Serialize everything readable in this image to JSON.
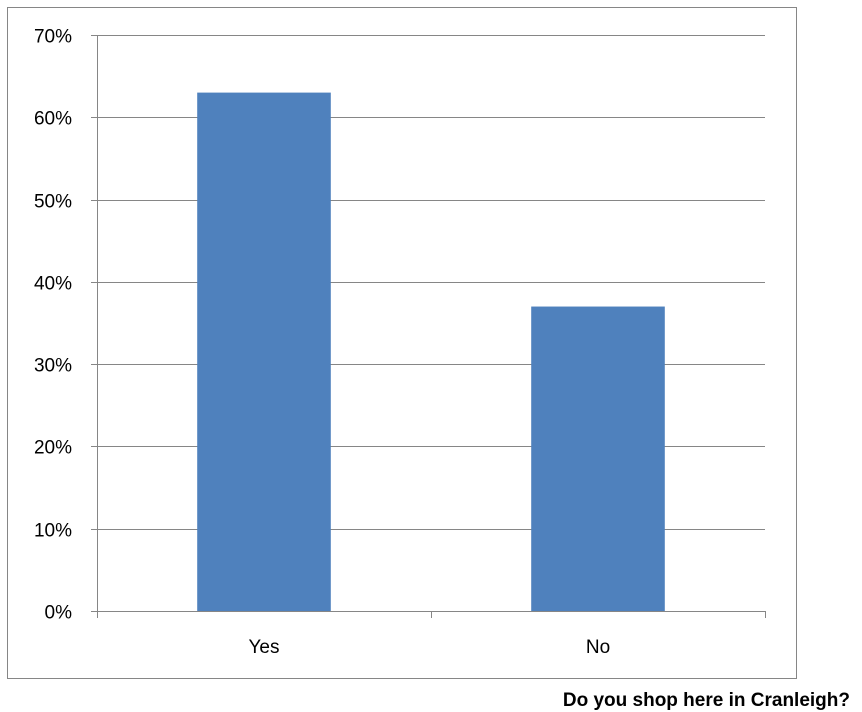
{
  "chart_data": {
    "type": "bar",
    "categories": [
      "Yes",
      "No"
    ],
    "values": [
      63,
      37
    ],
    "title": "",
    "xlabel": "",
    "ylabel": "",
    "ylim": [
      0,
      70
    ],
    "ytick_step": 10,
    "ytick_suffix": "%",
    "grid": true,
    "legend": "none",
    "bar_color": "#4F81BD",
    "gridline_color": "#868686"
  },
  "caption": "Do you shop here in Cranleigh?"
}
